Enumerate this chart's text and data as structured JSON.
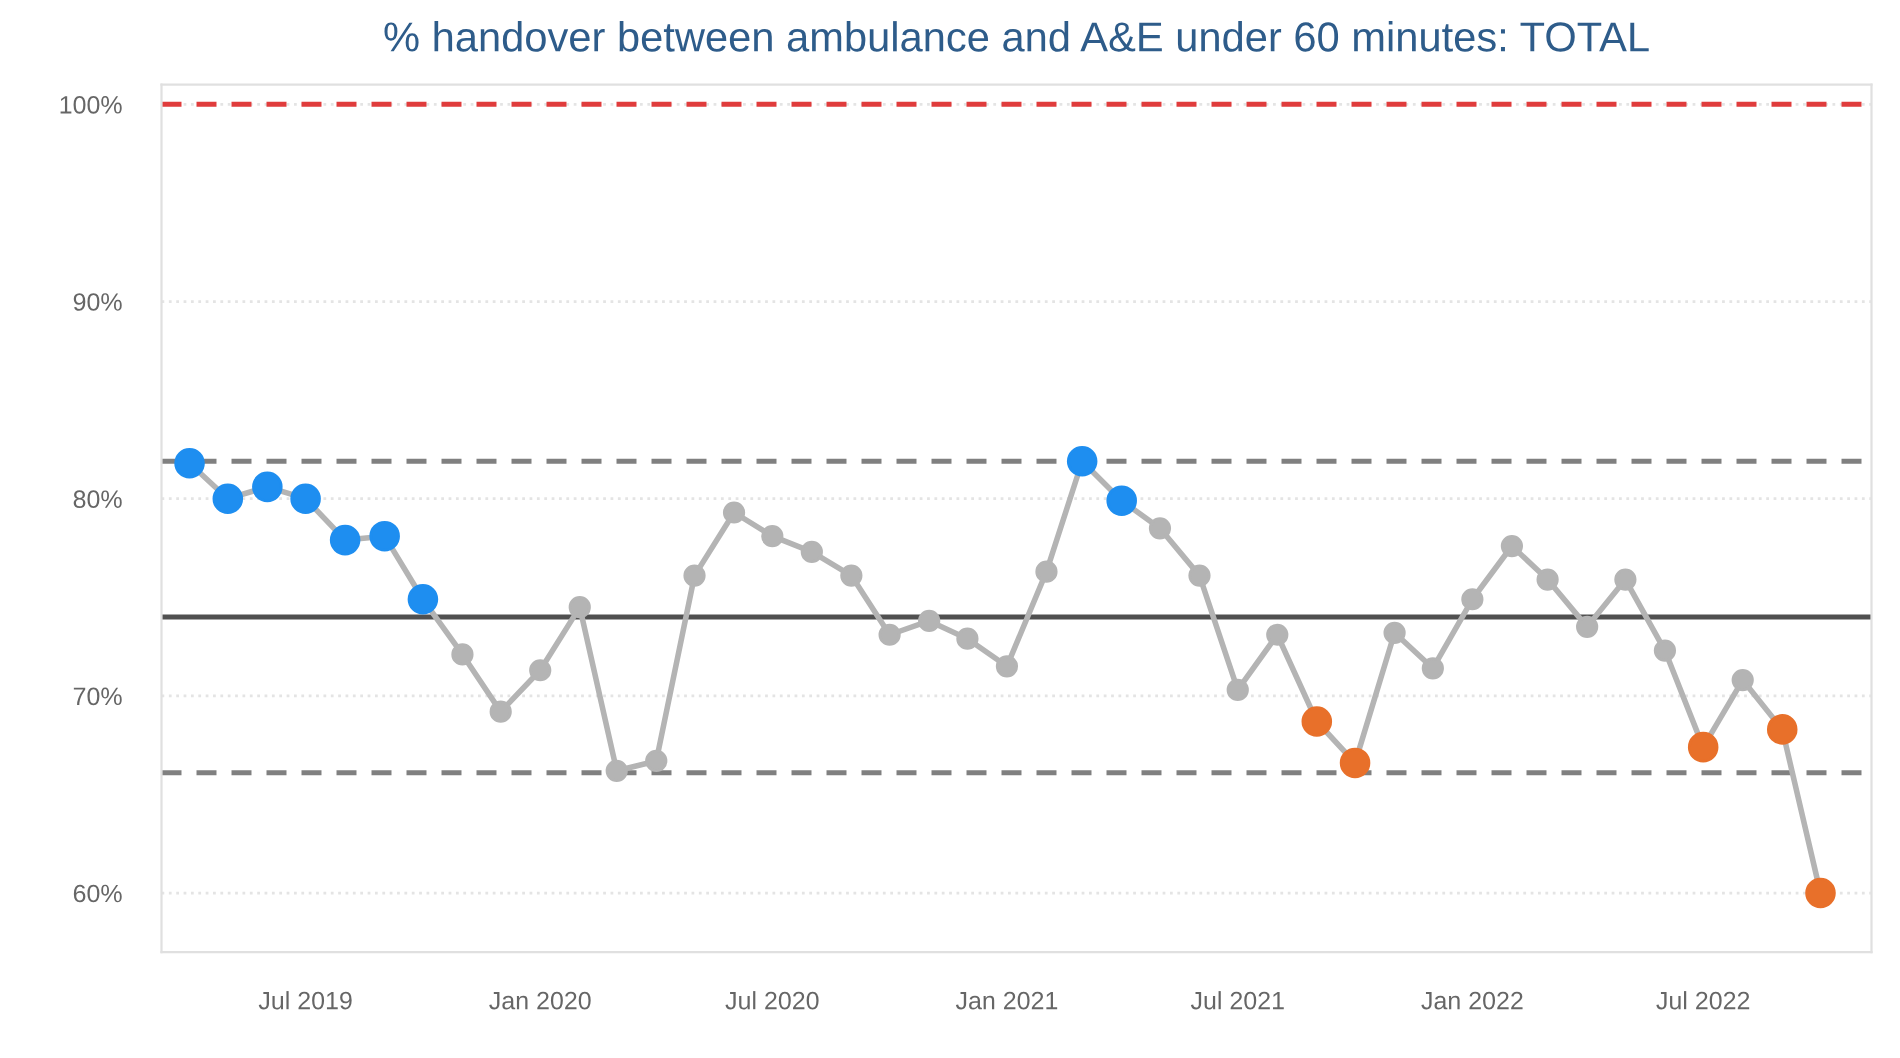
{
  "chart_data": {
    "type": "line",
    "title": "% handover between ambulance and A&E under 60 minutes: TOTAL",
    "x": [
      "2019-04",
      "2019-05",
      "2019-06",
      "2019-07",
      "2019-08",
      "2019-09",
      "2019-10",
      "2019-11",
      "2019-12",
      "2020-01",
      "2020-02",
      "2020-03",
      "2020-04",
      "2020-05",
      "2020-06",
      "2020-07",
      "2020-08",
      "2020-09",
      "2020-10",
      "2020-11",
      "2020-12",
      "2021-01",
      "2021-02",
      "2021-03",
      "2021-04",
      "2021-05",
      "2021-06",
      "2021-07",
      "2021-08",
      "2021-09",
      "2021-10",
      "2021-11",
      "2021-12",
      "2022-01",
      "2022-02",
      "2022-03",
      "2022-04",
      "2022-05",
      "2022-06",
      "2022-07",
      "2022-08",
      "2022-09",
      "2022-10"
    ],
    "series": [
      {
        "color": "#b4b4b4",
        "values": [
          81.8,
          80.0,
          80.6,
          80.0,
          77.9,
          78.1,
          74.9,
          72.1,
          69.2,
          71.3,
          74.5,
          66.2,
          66.7,
          76.1,
          79.3,
          78.1,
          77.3,
          76.1,
          73.1,
          73.8,
          72.9,
          71.5,
          76.3,
          81.9,
          79.9,
          78.5,
          76.1,
          70.3,
          73.1,
          68.7,
          66.6,
          73.2,
          71.4,
          74.9,
          77.6,
          75.9,
          73.5,
          75.9,
          72.3,
          67.4,
          70.8,
          68.3,
          60.0
        ],
        "colors": [
          "#1e8ef0",
          "#1e8ef0",
          "#1e8ef0",
          "#1e8ef0",
          "#1e8ef0",
          "#1e8ef0",
          "#1e8ef0",
          "#b4b4b4",
          "#b4b4b4",
          "#b4b4b4",
          "#b4b4b4",
          "#b4b4b4",
          "#b4b4b4",
          "#b4b4b4",
          "#b4b4b4",
          "#b4b4b4",
          "#b4b4b4",
          "#b4b4b4",
          "#b4b4b4",
          "#b4b4b4",
          "#b4b4b4",
          "#b4b4b4",
          "#b4b4b4",
          "#1e8ef0",
          "#1e8ef0",
          "#b4b4b4",
          "#b4b4b4",
          "#b4b4b4",
          "#b4b4b4",
          "#e8702a",
          "#e8702a",
          "#b4b4b4",
          "#b4b4b4",
          "#b4b4b4",
          "#b4b4b4",
          "#b4b4b4",
          "#b4b4b4",
          "#b4b4b4",
          "#b4b4b4",
          "#e8702a",
          "#b4b4b4",
          "#e8702a",
          "#e8702a"
        ]
      }
    ],
    "marker": "circle",
    "line_style": "solid",
    "xlim": [
      "2019-03-10",
      "2022-11-10"
    ],
    "xticks": [
      {
        "value": "2019-07",
        "label": "Jul 2019"
      },
      {
        "value": "2020-01",
        "label": "Jan 2020"
      },
      {
        "value": "2020-07",
        "label": "Jul 2020"
      },
      {
        "value": "2021-01",
        "label": "Jan 2021"
      },
      {
        "value": "2021-07",
        "label": "Jul 2021"
      },
      {
        "value": "2022-01",
        "label": "Jan 2022"
      },
      {
        "value": "2022-07",
        "label": "Jul 2022"
      }
    ],
    "ylim": [
      57,
      101
    ],
    "yticks": [
      {
        "value": 60,
        "label": "60%"
      },
      {
        "value": 70,
        "label": "70%"
      },
      {
        "value": 80,
        "label": "80%"
      },
      {
        "value": 90,
        "label": "90%"
      },
      {
        "value": 100,
        "label": "100%"
      }
    ],
    "grid": "y",
    "ref_lines": [
      {
        "axis": "y",
        "value": 100,
        "color": "#e03c3c",
        "line_style": "dashed"
      },
      {
        "axis": "y",
        "value": 81.9,
        "color": "#808080",
        "line_style": "dashed"
      },
      {
        "axis": "y",
        "value": 74.0,
        "color": "#505050",
        "line_style": "solid"
      },
      {
        "axis": "y",
        "value": 66.1,
        "color": "#808080",
        "line_style": "dashed"
      }
    ]
  }
}
